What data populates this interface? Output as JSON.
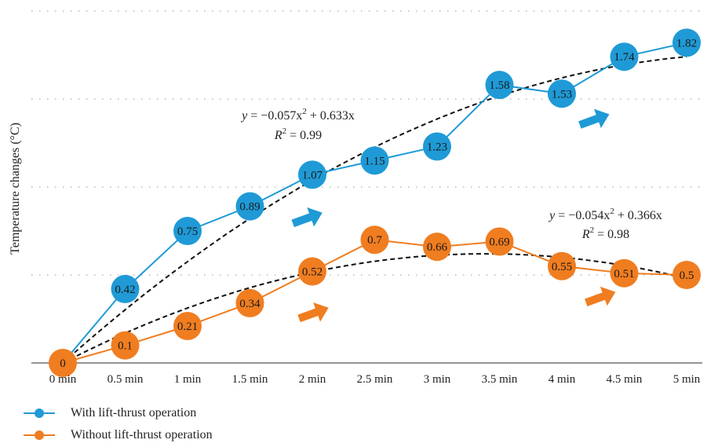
{
  "chart_data": {
    "type": "line",
    "ylabel": "Temperature changes (°C)",
    "xlabel": "",
    "categories": [
      "0 min",
      "0.5 min",
      "1 min",
      "1.5 min",
      "2 min",
      "2.5 min",
      "3 min",
      "3.5 min",
      "4 min",
      "4.5 min",
      "5 min"
    ],
    "x": [
      0,
      0.5,
      1,
      1.5,
      2,
      2.5,
      3,
      3.5,
      4,
      4.5,
      5
    ],
    "ylim": [
      0,
      2
    ],
    "grid": "horizontal dotted",
    "legend_position": "bottom-left",
    "series": [
      {
        "name": "With lift-thrust operation",
        "color": "#1f9ad6",
        "values": [
          0,
          0.42,
          0.75,
          0.89,
          1.07,
          1.15,
          1.23,
          1.58,
          1.53,
          1.74,
          1.82
        ],
        "labels": [
          "",
          "0.42",
          "0.75",
          "0.89",
          "1.07",
          "1.15",
          "1.23",
          "1.58",
          "1.53",
          "1.74",
          "1.82"
        ],
        "trend": {
          "a": -0.057,
          "b": 0.633,
          "c": 0.0
        }
      },
      {
        "name": "Without lift-thrust operation",
        "color": "#f07d20",
        "values": [
          0,
          0.1,
          0.21,
          0.34,
          0.52,
          0.7,
          0.66,
          0.69,
          0.55,
          0.51,
          0.5
        ],
        "labels": [
          "0",
          "0.1",
          "0.21",
          "0.34",
          "0.52",
          "0.7",
          "0.66",
          "0.69",
          "0.55",
          "0.51",
          "0.5"
        ],
        "trend": {
          "a": -0.054,
          "b": 0.366,
          "c": 0.0
        }
      }
    ],
    "annotations": [
      {
        "series": 0,
        "eq_y": "y",
        "eq_rest": " = −0.057x",
        "eq_tail": " + 0.633x",
        "r2": " = 0.99"
      },
      {
        "series": 1,
        "eq_y": "y",
        "eq_rest": " = −0.054x",
        "eq_tail": " + 0.366x",
        "r2": " = 0.98"
      }
    ],
    "arrows": [
      {
        "series": 0,
        "x": 1.95,
        "y": 0.82
      },
      {
        "series": 0,
        "x": 4.25,
        "y": 1.38
      },
      {
        "series": 1,
        "x": 2.0,
        "y": 0.28
      },
      {
        "series": 1,
        "x": 4.3,
        "y": 0.37
      }
    ]
  }
}
